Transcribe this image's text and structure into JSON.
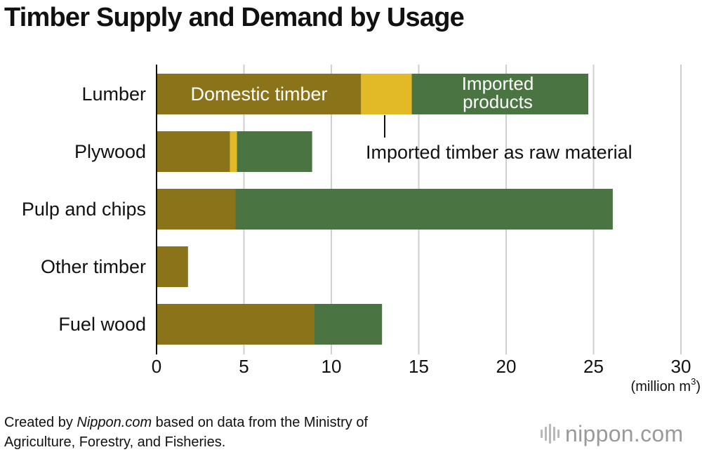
{
  "title": "Timber Supply and Demand by Usage",
  "chart_data": {
    "type": "bar",
    "orientation": "horizontal",
    "stacked": true,
    "categories": [
      "Lumber",
      "Plywood",
      "Pulp and chips",
      "Other timber",
      "Fuel wood"
    ],
    "series": [
      {
        "name": "Domestic timber",
        "color": "#8a7318",
        "values": [
          11.7,
          4.2,
          4.5,
          1.8,
          9.0
        ]
      },
      {
        "name": "Imported timber as raw material",
        "color": "#e2b926",
        "values": [
          2.9,
          0.4,
          0.0,
          0.0,
          0.0
        ]
      },
      {
        "name": "Imported products",
        "color": "#4a7542",
        "values": [
          10.1,
          4.3,
          21.6,
          0.0,
          3.9
        ]
      }
    ],
    "x_ticks": [
      "0",
      "5",
      "10",
      "15",
      "20",
      "25",
      "30"
    ],
    "xlim": [
      0,
      30
    ],
    "unit_label": "(million m",
    "unit_sup": "3",
    "unit_close": ")",
    "grid": true,
    "annotations": {
      "domestic": "Domestic timber",
      "imported_products_line1": "Imported",
      "imported_products_line2": "products",
      "imported_raw": "Imported timber as raw material"
    }
  },
  "source": {
    "prefix": "Created by ",
    "site": "Nippon.com",
    "line1_rest": " based on data from the Ministry of",
    "line2": "Agriculture, Forestry, and Fisheries."
  },
  "brand": {
    "text": "nippon.com",
    "icon": "nippon-logo-bars-icon"
  }
}
